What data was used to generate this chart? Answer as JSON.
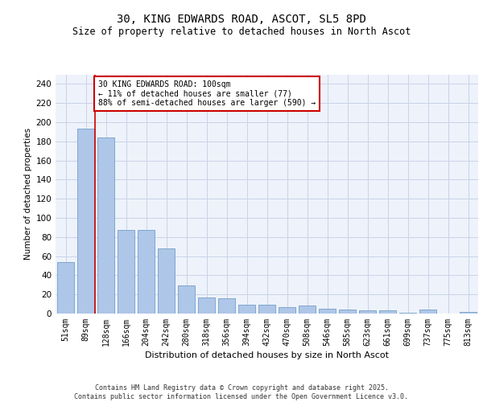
{
  "title_line1": "30, KING EDWARDS ROAD, ASCOT, SL5 8PD",
  "title_line2": "Size of property relative to detached houses in North Ascot",
  "xlabel": "Distribution of detached houses by size in North Ascot",
  "ylabel": "Number of detached properties",
  "categories": [
    "51sqm",
    "89sqm",
    "128sqm",
    "166sqm",
    "204sqm",
    "242sqm",
    "280sqm",
    "318sqm",
    "356sqm",
    "394sqm",
    "432sqm",
    "470sqm",
    "508sqm",
    "546sqm",
    "585sqm",
    "623sqm",
    "661sqm",
    "699sqm",
    "737sqm",
    "775sqm",
    "813sqm"
  ],
  "values": [
    54,
    193,
    184,
    87,
    87,
    68,
    29,
    17,
    16,
    9,
    9,
    7,
    8,
    5,
    4,
    3,
    3,
    1,
    4,
    0,
    2
  ],
  "bar_color": "#aec6e8",
  "bar_edge_color": "#7fa8cc",
  "grid_color": "#c8d4e8",
  "background_color": "#eef2fa",
  "annotation_text": "30 KING EDWARDS ROAD: 100sqm\n← 11% of detached houses are smaller (77)\n88% of semi-detached houses are larger (590) →",
  "annotation_box_color": "#ffffff",
  "annotation_border_color": "#cc0000",
  "footnote": "Contains HM Land Registry data © Crown copyright and database right 2025.\nContains public sector information licensed under the Open Government Licence v3.0.",
  "ylim": [
    0,
    250
  ],
  "yticks": [
    0,
    20,
    40,
    60,
    80,
    100,
    120,
    140,
    160,
    180,
    200,
    220,
    240
  ],
  "red_line_x": 1.45
}
